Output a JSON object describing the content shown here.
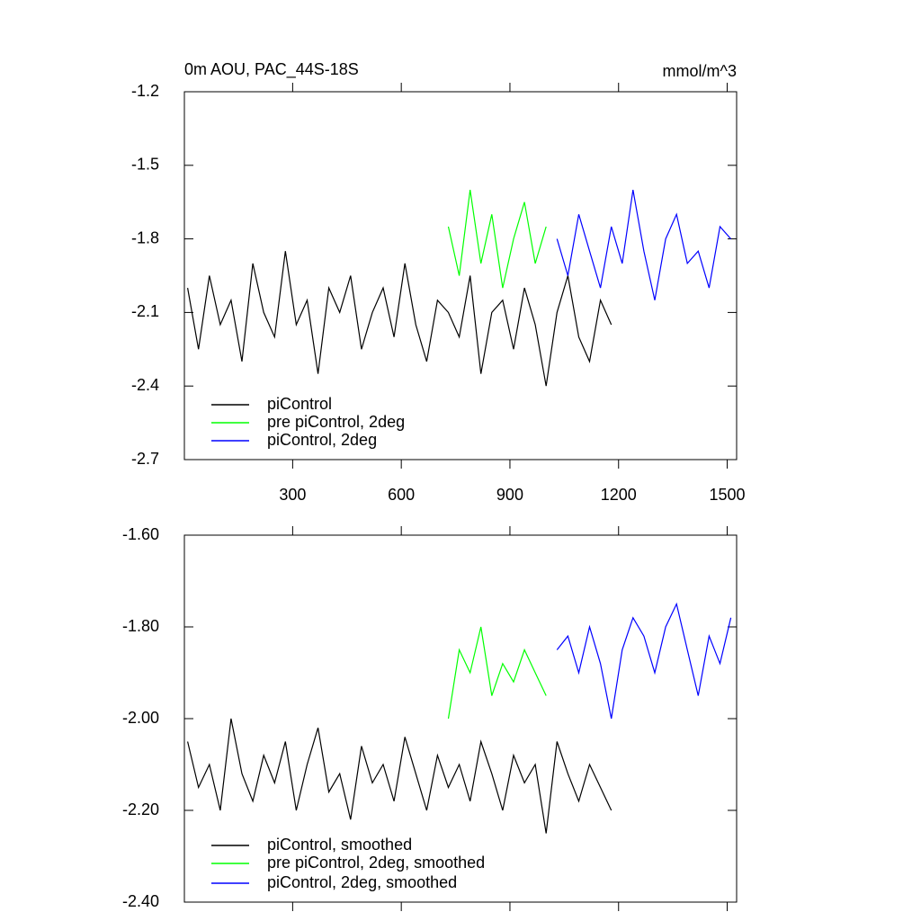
{
  "chart_data": [
    {
      "type": "line",
      "title": "0m AOU, PAC_44S-18S",
      "units": "mmol/m^3",
      "x": [
        10,
        40,
        70,
        100,
        130,
        160,
        190,
        220,
        250,
        280,
        310,
        340,
        370,
        400,
        430,
        460,
        490,
        520,
        550,
        580,
        610,
        640,
        670,
        700,
        730,
        760,
        790,
        820,
        850,
        880,
        910,
        940,
        970,
        1000,
        1030,
        1060,
        1090,
        1120,
        1150,
        1180,
        1210,
        1240,
        1270,
        1300,
        1330,
        1360,
        1390,
        1420,
        1450,
        1480,
        1510
      ],
      "xlim": [
        1,
        1526
      ],
      "xticks": [
        300,
        600,
        900,
        1200,
        1500
      ],
      "ylim": [
        -2.7,
        -1.2
      ],
      "yticks": [
        -1.2,
        -1.5,
        -1.8,
        -2.1,
        -2.4,
        -2.7
      ],
      "series": [
        {
          "name": "piControl",
          "color": "#000000",
          "values": [
            -2.0,
            -2.25,
            -1.95,
            -2.15,
            -2.05,
            -2.3,
            -1.9,
            -2.1,
            -2.2,
            -1.85,
            -2.15,
            -2.05,
            -2.35,
            -2.0,
            -2.1,
            -1.95,
            -2.25,
            -2.1,
            -2.0,
            -2.2,
            -1.9,
            -2.15,
            -2.3,
            -2.05,
            -2.1,
            -2.2,
            -1.95,
            -2.35,
            -2.1,
            -2.05,
            -2.25,
            -2.0,
            -2.15,
            -2.4,
            -2.1,
            -1.95,
            -2.2,
            -2.3,
            -2.05,
            -2.15,
            null,
            null,
            null,
            null,
            null,
            null,
            null,
            null,
            null,
            null,
            null
          ]
        },
        {
          "name": "pre piControl, 2deg",
          "color": "#00ff00",
          "values": [
            null,
            null,
            null,
            null,
            null,
            null,
            null,
            null,
            null,
            null,
            null,
            null,
            null,
            null,
            null,
            null,
            null,
            null,
            null,
            null,
            null,
            null,
            null,
            null,
            -1.75,
            -1.95,
            -1.6,
            -1.9,
            -1.7,
            -2.0,
            -1.8,
            -1.65,
            -1.9,
            -1.75,
            null,
            null,
            null,
            null,
            null,
            null,
            null,
            null,
            null,
            null,
            null,
            null,
            null,
            null,
            null,
            null,
            null
          ]
        },
        {
          "name": "piControl, 2deg",
          "color": "#0000ff",
          "values": [
            null,
            null,
            null,
            null,
            null,
            null,
            null,
            null,
            null,
            null,
            null,
            null,
            null,
            null,
            null,
            null,
            null,
            null,
            null,
            null,
            null,
            null,
            null,
            null,
            null,
            null,
            null,
            null,
            null,
            null,
            null,
            null,
            null,
            null,
            -1.8,
            -1.95,
            -1.7,
            -1.85,
            -2.0,
            -1.75,
            -1.9,
            -1.6,
            -1.85,
            -2.05,
            -1.8,
            -1.7,
            -1.9,
            -1.85,
            -2.0,
            -1.75,
            -1.8
          ]
        }
      ]
    },
    {
      "type": "line",
      "x": [
        10,
        40,
        70,
        100,
        130,
        160,
        190,
        220,
        250,
        280,
        310,
        340,
        370,
        400,
        430,
        460,
        490,
        520,
        550,
        580,
        610,
        640,
        670,
        700,
        730,
        760,
        790,
        820,
        850,
        880,
        910,
        940,
        970,
        1000,
        1030,
        1060,
        1090,
        1120,
        1150,
        1180,
        1210,
        1240,
        1270,
        1300,
        1330,
        1360,
        1390,
        1420,
        1450,
        1480,
        1510
      ],
      "xlim": [
        1,
        1526
      ],
      "xticks": [
        300,
        600,
        900,
        1200,
        1500
      ],
      "ylim": [
        -2.4,
        -1.6
      ],
      "yticks": [
        {
          "value": -1.6,
          "label": "-1.60"
        },
        {
          "value": -1.8,
          "label": "-1.80"
        },
        {
          "value": -2.0,
          "label": "-2.00"
        },
        {
          "value": -2.2,
          "label": "-2.20"
        },
        {
          "value": -2.4,
          "label": "-2.40"
        }
      ],
      "series": [
        {
          "name": "piControl, smoothed",
          "color": "#000000",
          "values": [
            -2.05,
            -2.15,
            -2.1,
            -2.2,
            -2.0,
            -2.12,
            -2.18,
            -2.08,
            -2.14,
            -2.05,
            -2.2,
            -2.1,
            -2.02,
            -2.16,
            -2.12,
            -2.22,
            -2.06,
            -2.14,
            -2.1,
            -2.18,
            -2.04,
            -2.12,
            -2.2,
            -2.08,
            -2.15,
            -2.1,
            -2.18,
            -2.05,
            -2.12,
            -2.2,
            -2.08,
            -2.14,
            -2.1,
            -2.25,
            -2.05,
            -2.12,
            -2.18,
            -2.1,
            -2.15,
            -2.2,
            null,
            null,
            null,
            null,
            null,
            null,
            null,
            null,
            null,
            null,
            null
          ]
        },
        {
          "name": "pre piControl, 2deg, smoothed",
          "color": "#00ff00",
          "values": [
            null,
            null,
            null,
            null,
            null,
            null,
            null,
            null,
            null,
            null,
            null,
            null,
            null,
            null,
            null,
            null,
            null,
            null,
            null,
            null,
            null,
            null,
            null,
            null,
            -2.0,
            -1.85,
            -1.9,
            -1.8,
            -1.95,
            -1.88,
            -1.92,
            -1.85,
            -1.9,
            -1.95,
            null,
            null,
            null,
            null,
            null,
            null,
            null,
            null,
            null,
            null,
            null,
            null,
            null,
            null,
            null,
            null,
            null
          ]
        },
        {
          "name": "piControl, 2deg, smoothed",
          "color": "#0000ff",
          "values": [
            null,
            null,
            null,
            null,
            null,
            null,
            null,
            null,
            null,
            null,
            null,
            null,
            null,
            null,
            null,
            null,
            null,
            null,
            null,
            null,
            null,
            null,
            null,
            null,
            null,
            null,
            null,
            null,
            null,
            null,
            null,
            null,
            null,
            null,
            -1.85,
            -1.82,
            -1.9,
            -1.8,
            -1.88,
            -2.0,
            -1.85,
            -1.78,
            -1.82,
            -1.9,
            -1.8,
            -1.75,
            -1.85,
            -1.95,
            -1.82,
            -1.88,
            -1.78
          ]
        }
      ]
    }
  ]
}
